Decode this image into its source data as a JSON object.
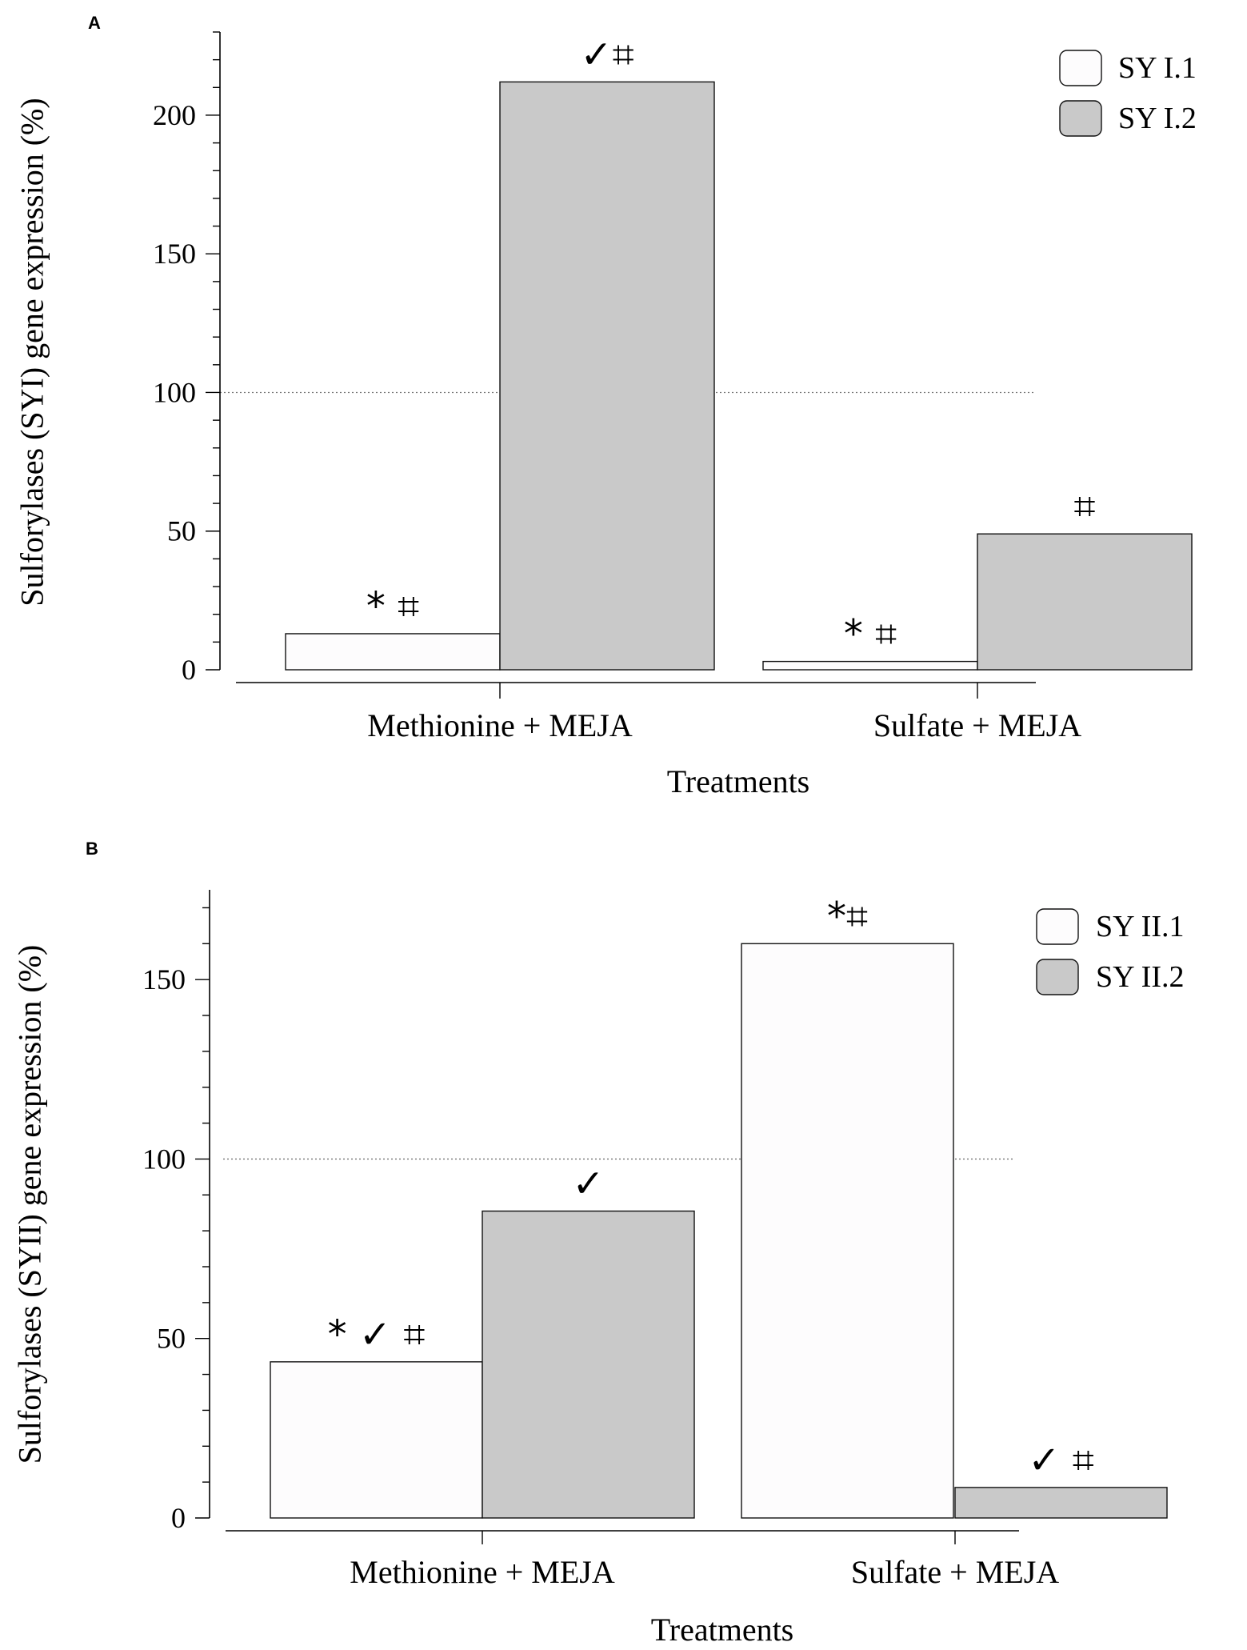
{
  "chart_data": [
    {
      "type": "bar",
      "panel": "A",
      "title": "",
      "xlabel": "Treatments",
      "ylabel": "Sulforylases (SYI)  gene expression (%)",
      "ylim": [
        0,
        230
      ],
      "yticks": [
        0,
        50,
        100,
        150,
        200
      ],
      "grid": false,
      "reference_line": 100,
      "legend_position": "top-right",
      "categories": [
        "Methionine + MEJA",
        "Sulfate + MEJA"
      ],
      "series": [
        {
          "name": "SY I.1",
          "color": "#fdfcfd",
          "values": [
            13,
            3
          ],
          "annotations": [
            "* ⌗",
            "* ⌗"
          ]
        },
        {
          "name": "SY I.2",
          "color": "#c9c9c9",
          "values": [
            212,
            49
          ],
          "annotations": [
            "✓⌗",
            "⌗"
          ]
        }
      ]
    },
    {
      "type": "bar",
      "panel": "B",
      "title": "",
      "xlabel": "Treatments",
      "ylabel": "Sulforylases (SYII)  gene expression (%)",
      "ylim": [
        0,
        175
      ],
      "yticks": [
        0,
        50,
        100,
        150
      ],
      "grid": false,
      "reference_line": 100,
      "legend_position": "top-right",
      "categories": [
        "Methionine + MEJA",
        "Sulfate + MEJA"
      ],
      "series": [
        {
          "name": "SY II.1",
          "color": "#fdfcfd",
          "values": [
            43.5,
            160
          ],
          "annotations": [
            "* ✓ ⌗",
            "*⌗"
          ]
        },
        {
          "name": "SY II.2",
          "color": "#c9c9c9",
          "values": [
            85.5,
            8.5
          ],
          "annotations": [
            "✓",
            "✓ ⌗"
          ]
        }
      ]
    }
  ]
}
